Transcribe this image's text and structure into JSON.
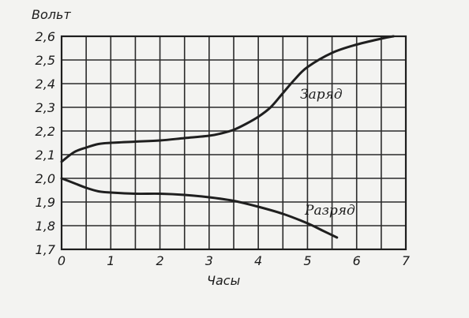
{
  "chart_data": {
    "type": "line",
    "xlabel": "Часы",
    "ylabel": "Вольт",
    "xlim": [
      0,
      7
    ],
    "ylim": [
      1.7,
      2.6
    ],
    "xticks": [
      "0",
      "1",
      "2",
      "3",
      "4",
      "5",
      "6",
      "7"
    ],
    "yticks": [
      "2,6",
      "2,5",
      "2,4",
      "2,3",
      "2,2",
      "2,1",
      "2,0",
      "1,9",
      "1,8",
      "1,7"
    ],
    "grid": true,
    "series": [
      {
        "name": "Заряд",
        "x": [
          0,
          0.25,
          0.5,
          0.75,
          1,
          1.5,
          2,
          2.5,
          3,
          3.25,
          3.5,
          3.75,
          4,
          4.25,
          4.5,
          4.75,
          5,
          5.5,
          6,
          6.5,
          6.75
        ],
        "y": [
          2.07,
          2.11,
          2.13,
          2.145,
          2.15,
          2.155,
          2.16,
          2.17,
          2.18,
          2.19,
          2.205,
          2.23,
          2.26,
          2.3,
          2.36,
          2.42,
          2.47,
          2.53,
          2.565,
          2.59,
          2.6
        ]
      },
      {
        "name": "Разряд",
        "x": [
          0,
          0.25,
          0.5,
          0.75,
          1,
          1.5,
          2,
          2.5,
          3,
          3.5,
          4,
          4.5,
          5,
          5.3,
          5.6
        ],
        "y": [
          2.0,
          1.98,
          1.96,
          1.945,
          1.94,
          1.935,
          1.935,
          1.93,
          1.92,
          1.905,
          1.88,
          1.85,
          1.81,
          1.78,
          1.75
        ]
      }
    ]
  }
}
